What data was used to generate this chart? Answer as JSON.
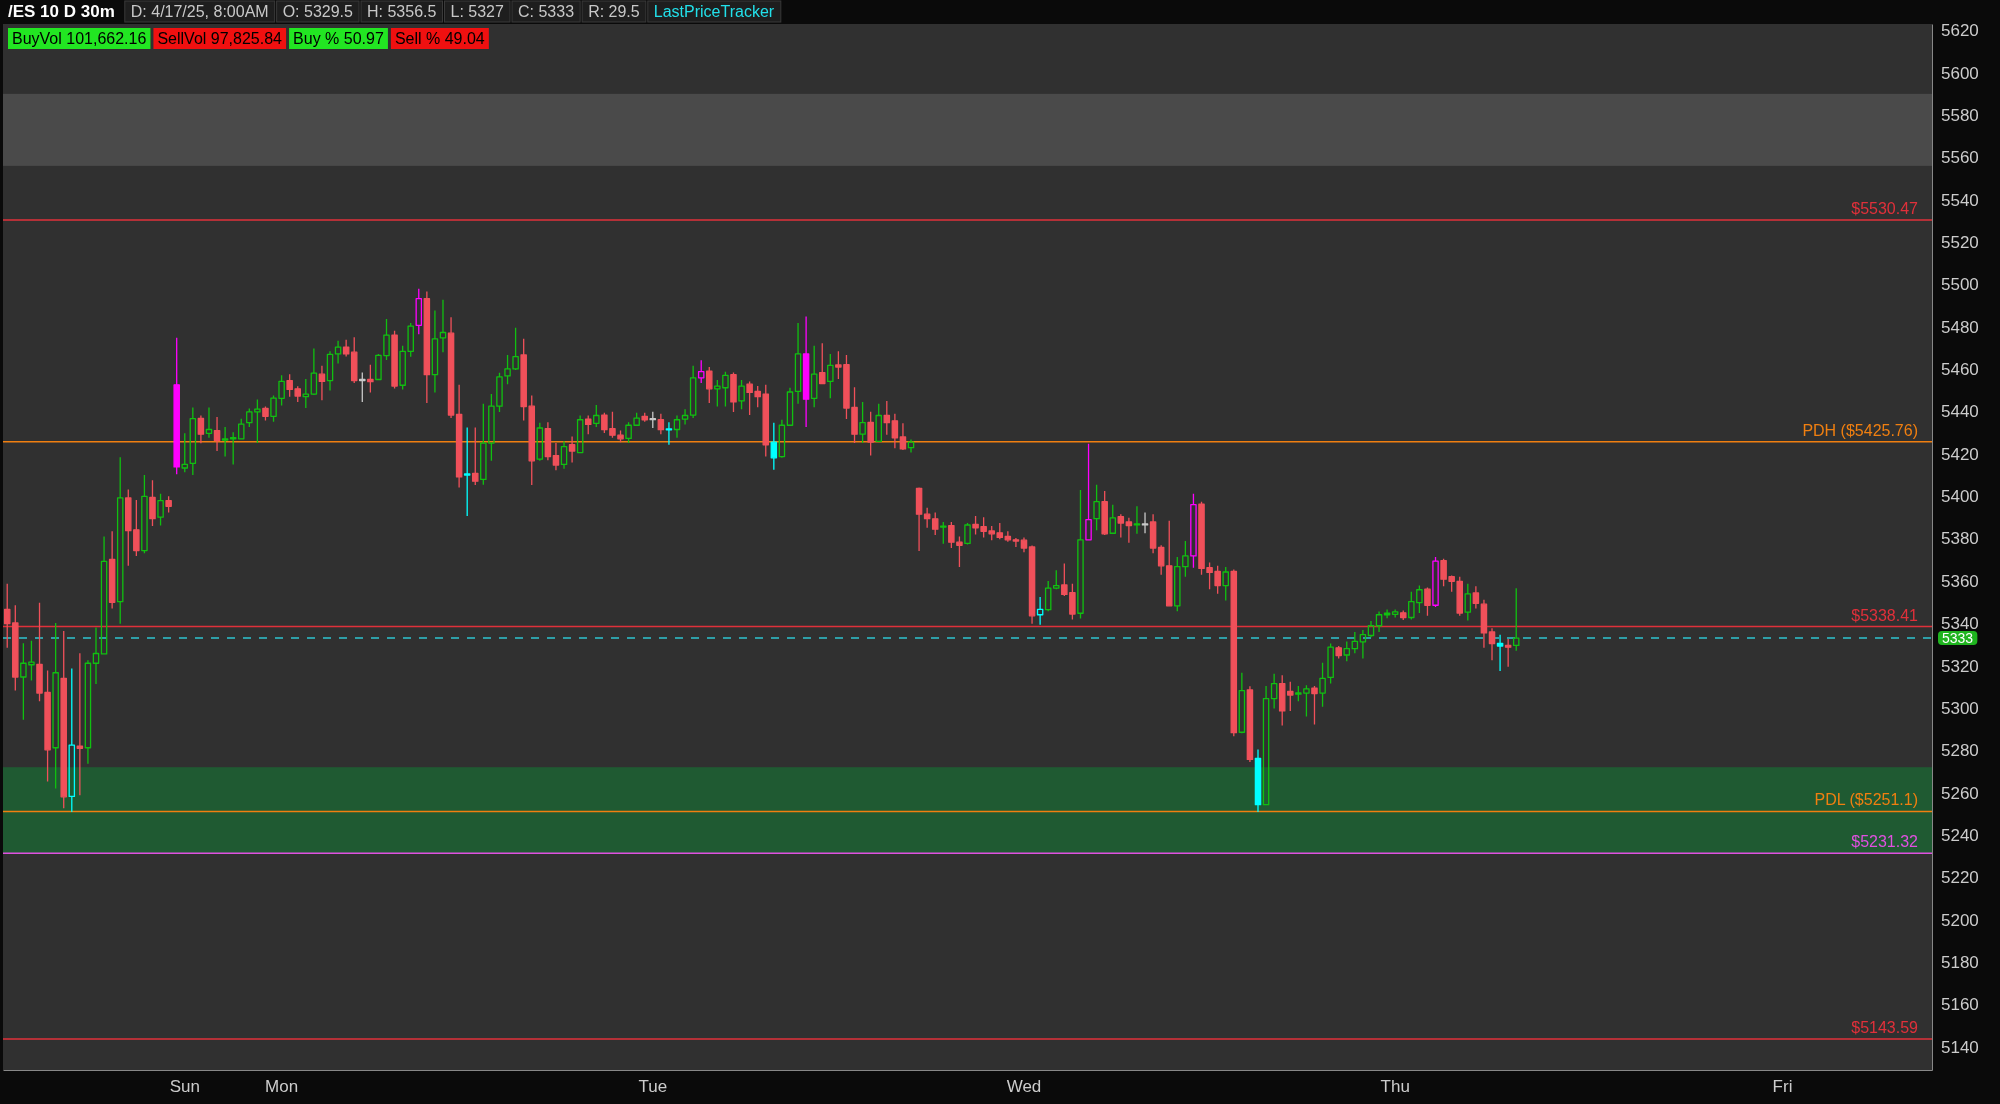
{
  "chart_data": {
    "type": "candlestick",
    "title": "/ES 10 D 30m",
    "annotations": [
      "D: 4/17/25, 8:00AM",
      "O: 5329.5",
      "H: 5356.5",
      "L: 5327",
      "C: 5333",
      "R: 29.5",
      "LastPriceTracker",
      "BuyVol 101,662.16",
      "SellVol 97,825.84",
      "Buy % 50.97",
      "Sell % 49.04"
    ],
    "categories": [
      null,
      null,
      null,
      null,
      null,
      null,
      null,
      null,
      null,
      null,
      null,
      null,
      null,
      null,
      null,
      null,
      null,
      null,
      null,
      null,
      null,
      null,
      "Sun",
      null,
      null,
      null,
      null,
      null,
      null,
      null,
      null,
      null,
      null,
      null,
      "Mon",
      null,
      null,
      null,
      null,
      null,
      null,
      null,
      null,
      null,
      null,
      null,
      null,
      null,
      null,
      null,
      null,
      null,
      null,
      null,
      null,
      null,
      null,
      null,
      null,
      null,
      null,
      null,
      null,
      null,
      null,
      null,
      null,
      null,
      null,
      null,
      null,
      null,
      null,
      null,
      null,
      null,
      null,
      null,
      null,
      null,
      "Tue",
      null,
      null,
      null,
      null,
      null,
      null,
      null,
      null,
      null,
      null,
      null,
      null,
      null,
      null,
      null,
      null,
      null,
      null,
      null,
      null,
      null,
      null,
      null,
      null,
      null,
      null,
      null,
      null,
      null,
      null,
      null,
      null,
      null,
      null,
      null,
      null,
      null,
      null,
      null,
      null,
      null,
      null,
      null,
      null,
      null,
      "Wed",
      null,
      null,
      null,
      null,
      null,
      null,
      null,
      null,
      null,
      null,
      null,
      null,
      null,
      null,
      null,
      null,
      null,
      null,
      null,
      null,
      null,
      null,
      null,
      null,
      null,
      null,
      null,
      null,
      null,
      null,
      null,
      null,
      null,
      null,
      null,
      null,
      null,
      null,
      null,
      null,
      null,
      null,
      null,
      null,
      null,
      "Thu",
      null,
      null,
      null,
      null,
      null,
      null,
      null,
      null,
      null,
      null,
      null,
      null,
      null,
      null,
      null,
      null,
      null,
      null,
      null,
      null,
      null,
      null,
      null,
      null,
      null,
      null,
      null,
      null,
      null,
      null,
      null,
      null,
      null,
      null,
      null,
      null,
      null,
      null,
      null,
      null,
      null,
      null,
      null,
      null,
      null,
      null,
      null,
      "Fri",
      null,
      null,
      null,
      null,
      null,
      null,
      null,
      null,
      null,
      null,
      null,
      null,
      null,
      null,
      null,
      null,
      null,
      null
    ],
    "ohlc": [
      [
        5346.5,
        5358.6,
        5328.4,
        5339.8
      ],
      [
        5340.1,
        5348.5,
        5308.2,
        5314.6
      ],
      [
        5314.6,
        5330.5,
        5294.4,
        5321.1
      ],
      [
        5320.4,
        5331.7,
        5312.9,
        5321.6
      ],
      [
        5320.6,
        5349.7,
        5303.1,
        5307.0
      ],
      [
        5307.3,
        5317.7,
        5265.2,
        5280.2
      ],
      [
        5281.2,
        5340.1,
        5261.9,
        5316.6
      ],
      [
        5314.0,
        5336.3,
        5252.6,
        5258.0
      ],
      [
        5258.2,
        5318.6,
        5250.9,
        5282.4
      ],
      [
        5281.9,
        5325.8,
        5258.8,
        5280.9
      ],
      [
        5281.2,
        5322.5,
        5273.6,
        5321.1
      ],
      [
        5321.1,
        5338.0,
        5311.3,
        5325.7
      ],
      [
        5325.5,
        5381.0,
        5325.5,
        5369.2
      ],
      [
        5370.1,
        5383.4,
        5346.9,
        5349.9
      ],
      [
        5350.2,
        5418.4,
        5339.8,
        5399.2
      ],
      [
        5399.2,
        5403.1,
        5367.1,
        5383.7
      ],
      [
        5384.1,
        5398.2,
        5371.8,
        5374.3
      ],
      [
        5374.3,
        5410.0,
        5373.0,
        5399.9
      ],
      [
        5399.4,
        5407.5,
        5385.9,
        5389.4
      ],
      [
        5390.1,
        5401.2,
        5386.2,
        5397.9
      ],
      [
        5397.9,
        5400.0,
        5392.3,
        5395.2
      ],
      [
        5452.6,
        5474.8,
        5410.3,
        5413.8
      ],
      [
        5413.3,
        5429.7,
        5411.3,
        5415.0
      ],
      [
        5415.5,
        5441.9,
        5410.0,
        5436.6
      ],
      [
        5436.7,
        5438.1,
        5425.0,
        5429.3
      ],
      [
        5429.7,
        5441.9,
        5427.6,
        5431.5
      ],
      [
        5431.0,
        5437.4,
        5421.3,
        5426.3
      ],
      [
        5426.6,
        5432.7,
        5418.7,
        5427.0
      ],
      [
        5427.3,
        5430.2,
        5415.0,
        5427.6
      ],
      [
        5427.1,
        5436.6,
        5427.1,
        5434.0
      ],
      [
        5434.7,
        5441.4,
        5432.7,
        5439.8
      ],
      [
        5439.8,
        5445.7,
        5425.1,
        5441.1
      ],
      [
        5441.4,
        5442.3,
        5435.7,
        5437.7
      ],
      [
        5437.7,
        5447.5,
        5435.2,
        5446.3
      ],
      [
        5446.2,
        5457.1,
        5442.8,
        5454.2
      ],
      [
        5454.6,
        5457.6,
        5447.0,
        5450.4
      ],
      [
        5450.7,
        5451.9,
        5444.5,
        5447.3
      ],
      [
        5447.0,
        5455.3,
        5441.6,
        5448.2
      ],
      [
        5448.2,
        5469.7,
        5447.8,
        5458.1
      ],
      [
        5457.6,
        5461.6,
        5445.3,
        5454.2
      ],
      [
        5454.6,
        5468.4,
        5449.9,
        5467.0
      ],
      [
        5467.2,
        5473.4,
        5462.7,
        5470.4
      ],
      [
        5470.4,
        5473.9,
        5466.0,
        5467.2
      ],
      [
        5468.0,
        5475.1,
        5453.4,
        5454.6
      ],
      [
        5455.1,
        5458.4,
        5444.5,
        5455.1
      ],
      [
        5455.2,
        5462.1,
        5449.0,
        5454.1
      ],
      [
        5455.1,
        5467.2,
        5454.9,
        5466.5
      ],
      [
        5466.4,
        5483.7,
        5464.3,
        5476.1
      ],
      [
        5476.1,
        5478.1,
        5450.9,
        5452.0
      ],
      [
        5452.4,
        5471.1,
        5450.4,
        5468.4
      ],
      [
        5468.4,
        5481.8,
        5465.9,
        5480.3
      ],
      [
        5480.7,
        5498.0,
        5476.5,
        5493.3
      ],
      [
        5493.3,
        5496.7,
        5444.0,
        5457.4
      ],
      [
        5457.4,
        5487.7,
        5449.0,
        5474.3
      ],
      [
        5474.8,
        5492.8,
        5468.0,
        5477.3
      ],
      [
        5477.0,
        5484.5,
        5436.9,
        5438.3
      ],
      [
        5438.6,
        5452.6,
        5404.1,
        5409.1
      ],
      [
        5410.0,
        5432.4,
        5390.6,
        5410.5
      ],
      [
        5410.8,
        5432.4,
        5405.3,
        5407.1
      ],
      [
        5407.9,
        5443.6,
        5405.4,
        5425.1
      ],
      [
        5425.1,
        5448.2,
        5416.7,
        5442.5
      ],
      [
        5442.5,
        5458.3,
        5439.8,
        5456.3
      ],
      [
        5456.8,
        5466.7,
        5452.9,
        5460.1
      ],
      [
        5460.1,
        5479.5,
        5459.6,
        5465.9
      ],
      [
        5466.7,
        5474.4,
        5435.7,
        5442.3
      ],
      [
        5442.5,
        5447.5,
        5405.3,
        5416.7
      ],
      [
        5417.5,
        5434.7,
        5416.7,
        5432.2
      ],
      [
        5431.9,
        5434.9,
        5417.0,
        5418.7
      ],
      [
        5419.2,
        5425.1,
        5412.2,
        5414.7
      ],
      [
        5415.0,
        5426.0,
        5413.0,
        5423.4
      ],
      [
        5424.3,
        5428.2,
        5415.9,
        5421.3
      ],
      [
        5420.6,
        5438.1,
        5420.4,
        5436.1
      ],
      [
        5436.4,
        5438.1,
        5429.3,
        5433.9
      ],
      [
        5434.4,
        5443.1,
        5432.7,
        5438.1
      ],
      [
        5438.3,
        5439.4,
        5429.8,
        5431.4
      ],
      [
        5431.9,
        5439.9,
        5427.6,
        5428.8
      ],
      [
        5428.8,
        5431.0,
        5425.5,
        5427.1
      ],
      [
        5427.3,
        5434.9,
        5425.1,
        5433.5
      ],
      [
        5433.5,
        5439.4,
        5433.2,
        5436.9
      ],
      [
        5437.7,
        5439.4,
        5435.2,
        5436.1
      ],
      [
        5436.6,
        5439.9,
        5432.2,
        5436.6
      ],
      [
        5436.1,
        5438.9,
        5429.3,
        5431.4
      ],
      [
        5431.4,
        5434.9,
        5424.3,
        5431.8
      ],
      [
        5431.5,
        5438.1,
        5427.6,
        5436.1
      ],
      [
        5436.4,
        5441.1,
        5433.9,
        5438.1
      ],
      [
        5438.3,
        5461.6,
        5436.9,
        5455.9
      ],
      [
        5455.9,
        5464.2,
        5453.4,
        5458.8
      ],
      [
        5459.1,
        5461.0,
        5444.0,
        5450.7
      ],
      [
        5450.7,
        5454.9,
        5442.3,
        5452.0
      ],
      [
        5451.2,
        5458.8,
        5442.3,
        5457.1
      ],
      [
        5457.4,
        5458.4,
        5439.8,
        5444.5
      ],
      [
        5445.0,
        5454.9,
        5441.1,
        5452.0
      ],
      [
        5452.9,
        5454.2,
        5438.3,
        5449.0
      ],
      [
        5449.5,
        5452.0,
        5442.0,
        5447.0
      ],
      [
        5448.2,
        5452.6,
        5418.7,
        5424.3
      ],
      [
        5425.5,
        5434.7,
        5412.5,
        5418.1
      ],
      [
        5418.7,
        5436.1,
        5418.1,
        5433.5
      ],
      [
        5433.5,
        5451.2,
        5433.2,
        5449.2
      ],
      [
        5449.5,
        5481.8,
        5443.6,
        5467.2
      ],
      [
        5467.2,
        5484.9,
        5432.7,
        5445.8
      ],
      [
        5446.2,
        5471.1,
        5442.0,
        5457.6
      ],
      [
        5458.3,
        5472.2,
        5452.9,
        5453.2
      ],
      [
        5454.2,
        5467.2,
        5446.2,
        5461.8
      ],
      [
        5462.0,
        5468.5,
        5455.4,
        5461.0
      ],
      [
        5462.1,
        5466.7,
        5436.4,
        5441.6
      ],
      [
        5441.9,
        5451.5,
        5425.1,
        5429.3
      ],
      [
        5429.3,
        5444.5,
        5425.1,
        5434.7
      ],
      [
        5434.9,
        5439.9,
        5419.2,
        5425.6
      ],
      [
        5425.9,
        5443.6,
        5425.6,
        5438.1
      ],
      [
        5438.1,
        5445.0,
        5429.0,
        5434.7
      ],
      [
        5435.6,
        5438.9,
        5422.6,
        5427.6
      ],
      [
        5428.0,
        5434.4,
        5421.8,
        5422.3
      ],
      [
        5422.9,
        5426.8,
        5420.6,
        5425.5
      ],
      [
        5403.7,
        5404.1,
        5374.1,
        5391.5
      ],
      [
        5391.5,
        5394.5,
        5385.1,
        5389.4
      ],
      [
        5389.3,
        5392.3,
        5381.7,
        5384.4
      ],
      [
        5385.6,
        5387.8,
        5377.5,
        5385.9
      ],
      [
        5386.1,
        5387.8,
        5375.5,
        5378.3
      ],
      [
        5378.3,
        5381.0,
        5366.6,
        5376.8
      ],
      [
        5377.7,
        5387.3,
        5377.2,
        5386.4
      ],
      [
        5386.7,
        5390.6,
        5381.9,
        5385.1
      ],
      [
        5385.6,
        5390.1,
        5380.5,
        5383.4
      ],
      [
        5383.6,
        5385.9,
        5379.2,
        5382.2
      ],
      [
        5382.7,
        5387.3,
        5379.7,
        5380.5
      ],
      [
        5381.0,
        5383.4,
        5378.5,
        5379.4
      ],
      [
        5379.4,
        5380.2,
        5376.0,
        5378.8
      ],
      [
        5379.2,
        5380.5,
        5373.5,
        5375.5
      ],
      [
        5376.0,
        5376.7,
        5339.8,
        5343.5
      ],
      [
        5344.0,
        5352.4,
        5339.3,
        5346.5
      ],
      [
        5346.4,
        5360.0,
        5345.7,
        5356.6
      ],
      [
        5356.6,
        5365.0,
        5356.1,
        5357.8
      ],
      [
        5358.1,
        5368.2,
        5352.8,
        5353.6
      ],
      [
        5354.4,
        5358.6,
        5341.8,
        5344.3
      ],
      [
        5344.7,
        5402.9,
        5342.2,
        5379.4
      ],
      [
        5379.4,
        5424.8,
        5379.4,
        5388.9
      ],
      [
        5389.4,
        5405.4,
        5383.9,
        5397.4
      ],
      [
        5397.4,
        5402.4,
        5381.7,
        5382.2
      ],
      [
        5382.5,
        5396.0,
        5382.2,
        5389.8
      ],
      [
        5390.3,
        5391.5,
        5380.5,
        5387.3
      ],
      [
        5387.8,
        5389.8,
        5378.0,
        5386.1
      ],
      [
        5386.6,
        5395.3,
        5382.2,
        5386.9
      ],
      [
        5386.9,
        5392.3,
        5382.5,
        5386.9
      ],
      [
        5387.8,
        5391.5,
        5373.0,
        5375.5
      ],
      [
        5375.8,
        5376.8,
        5362.9,
        5367.1
      ],
      [
        5367.1,
        5388.4,
        5348.2,
        5348.2
      ],
      [
        5348.2,
        5371.3,
        5345.7,
        5366.7
      ],
      [
        5366.7,
        5378.8,
        5362.0,
        5371.8
      ],
      [
        5371.8,
        5401.1,
        5366.2,
        5396.0
      ],
      [
        5396.2,
        5397.4,
        5362.9,
        5365.9
      ],
      [
        5366.2,
        5368.7,
        5356.1,
        5364.0
      ],
      [
        5364.5,
        5367.1,
        5353.9,
        5357.8
      ],
      [
        5357.8,
        5366.6,
        5350.7,
        5364.2
      ],
      [
        5364.5,
        5365.4,
        5286.6,
        5288.3
      ],
      [
        5288.5,
        5316.6,
        5288.0,
        5308.2
      ],
      [
        5308.5,
        5310.2,
        5274.5,
        5275.7
      ],
      [
        5276.2,
        5280.4,
        5250.9,
        5254.3
      ],
      [
        5254.3,
        5310.3,
        5254.3,
        5304.4
      ],
      [
        5304.4,
        5316.1,
        5299.7,
        5311.5
      ],
      [
        5311.5,
        5315.4,
        5291.7,
        5298.6
      ],
      [
        5307.8,
        5312.4,
        5298.6,
        5306.1
      ],
      [
        5306.5,
        5310.3,
        5303.1,
        5307.1
      ],
      [
        5307.0,
        5310.7,
        5296.0,
        5309.0
      ],
      [
        5309.3,
        5310.3,
        5292.2,
        5306.8
      ],
      [
        5307.0,
        5321.3,
        5300.6,
        5314.0
      ],
      [
        5314.4,
        5330.4,
        5311.5,
        5328.7
      ],
      [
        5328.4,
        5329.2,
        5323.3,
        5324.7
      ],
      [
        5325.0,
        5331.4,
        5322.1,
        5328.0
      ],
      [
        5328.0,
        5335.9,
        5325.8,
        5331.4
      ],
      [
        5331.2,
        5336.8,
        5323.3,
        5334.6
      ],
      [
        5334.2,
        5341.0,
        5333.4,
        5338.8
      ],
      [
        5338.8,
        5345.5,
        5335.9,
        5344.0
      ],
      [
        5344.0,
        5346.5,
        5342.3,
        5344.7
      ],
      [
        5344.2,
        5346.5,
        5342.7,
        5345.4
      ],
      [
        5344.9,
        5346.0,
        5341.5,
        5342.7
      ],
      [
        5342.7,
        5354.9,
        5341.8,
        5350.2
      ],
      [
        5349.7,
        5357.8,
        5344.8,
        5355.8
      ],
      [
        5356.1,
        5356.9,
        5343.5,
        5348.5
      ],
      [
        5348.5,
        5371.3,
        5347.7,
        5369.3
      ],
      [
        5369.6,
        5370.4,
        5357.5,
        5360.8
      ],
      [
        5362.0,
        5362.5,
        5354.9,
        5359.8
      ],
      [
        5359.8,
        5362.0,
        5343.5,
        5344.8
      ],
      [
        5345.2,
        5358.6,
        5341.3,
        5353.9
      ],
      [
        5354.3,
        5357.5,
        5346.9,
        5349.4
      ],
      [
        5349.0,
        5351.1,
        5328.4,
        5335.4
      ],
      [
        5335.9,
        5337.6,
        5322.5,
        5330.4
      ],
      [
        5330.5,
        5334.6,
        5317.4,
        5329.2
      ],
      [
        5329.5,
        5332.6,
        5319.4,
        5328.7
      ],
      [
        5329.5,
        5356.5,
        5327,
        5333
      ],
      null,
      null,
      null,
      null,
      null,
      null,
      null,
      null,
      null,
      null,
      null,
      null,
      null,
      null,
      null,
      null,
      null,
      null,
      null,
      null,
      null,
      null,
      null,
      null,
      null,
      null,
      null,
      null,
      null,
      null,
      null,
      null,
      null,
      null,
      null,
      null,
      null,
      null,
      null,
      null,
      null,
      null,
      null,
      null,
      null,
      null,
      null,
      null,
      null,
      null,
      null
    ],
    "colors": [
      "#f0505a",
      "#f0505a",
      "#10c010",
      "#10c010",
      "#f0505a",
      "#f0505a",
      "#10c010",
      "#f0505a",
      "#00ffff",
      "#f0505a",
      "#10c010",
      "#10c010",
      "#10c010",
      "#f0505a",
      "#10c010",
      "#f0505a",
      "#f0505a",
      "#10c010",
      "#f0505a",
      "#10c010",
      "#f0505a",
      "#ff00ff",
      "#10c010",
      "#10c010",
      "#f0505a",
      "#10c010",
      "#f0505a",
      "#10c010",
      "#10c010",
      "#10c010",
      "#10c010",
      "#10c010",
      "#f0505a",
      "#10c010",
      "#10c010",
      "#f0505a",
      "#f0505a",
      "#10c010",
      "#10c010",
      "#f0505a",
      "#10c010",
      "#10c010",
      "#f0505a",
      "#f0505a",
      "#c8c8c8",
      "#f0505a",
      "#10c010",
      "#10c010",
      "#f0505a",
      "#10c010",
      "#10c010",
      "#ff00ff",
      "#f0505a",
      "#10c010",
      "#10c010",
      "#f0505a",
      "#f0505a",
      "#00ffff",
      "#f0505a",
      "#10c010",
      "#10c010",
      "#10c010",
      "#10c010",
      "#10c010",
      "#f0505a",
      "#f0505a",
      "#10c010",
      "#f0505a",
      "#f0505a",
      "#10c010",
      "#f0505a",
      "#10c010",
      "#f0505a",
      "#10c010",
      "#f0505a",
      "#f0505a",
      "#f0505a",
      "#10c010",
      "#10c010",
      "#f0505a",
      "#c8c8c8",
      "#f0505a",
      "#00ffff",
      "#10c010",
      "#10c010",
      "#10c010",
      "#ff00ff",
      "#f0505a",
      "#10c010",
      "#10c010",
      "#f0505a",
      "#10c010",
      "#f0505a",
      "#f0505a",
      "#f0505a",
      "#00ffff",
      "#10c010",
      "#10c010",
      "#10c010",
      "#ff00ff",
      "#10c010",
      "#f0505a",
      "#10c010",
      "#f0505a",
      "#f0505a",
      "#f0505a",
      "#10c010",
      "#f0505a",
      "#10c010",
      "#f0505a",
      "#f0505a",
      "#f0505a",
      "#10c010",
      "#f0505a",
      "#f0505a",
      "#f0505a",
      "#10c010",
      "#f0505a",
      "#f0505a",
      "#10c010",
      "#f0505a",
      "#f0505a",
      "#f0505a",
      "#f0505a",
      "#f0505a",
      "#f0505a",
      "#f0505a",
      "#f0505a",
      "#00ffff",
      "#10c010",
      "#10c010",
      "#f0505a",
      "#f0505a",
      "#10c010",
      "#ff00ff",
      "#10c010",
      "#f0505a",
      "#10c010",
      "#f0505a",
      "#f0505a",
      "#10c010",
      "#c8c8c8",
      "#f0505a",
      "#f0505a",
      "#f0505a",
      "#10c010",
      "#10c010",
      "#ff00ff",
      "#f0505a",
      "#f0505a",
      "#f0505a",
      "#10c010",
      "#f0505a",
      "#10c010",
      "#f0505a",
      "#00ffff",
      "#10c010",
      "#10c010",
      "#f0505a",
      "#f0505a",
      "#10c010",
      "#10c010",
      "#f0505a",
      "#10c010",
      "#10c010",
      "#f0505a",
      "#10c010",
      "#10c010",
      "#10c010",
      "#10c010",
      "#10c010",
      "#10c010",
      "#10c010",
      "#f0505a",
      "#10c010",
      "#10c010",
      "#f0505a",
      "#ff00ff",
      "#f0505a",
      "#f0505a",
      "#f0505a",
      "#10c010",
      "#f0505a",
      "#f0505a",
      "#f0505a",
      "#00ffff",
      "#f0505a",
      "#10c010",
      null,
      null,
      null,
      null,
      null,
      null,
      null,
      null,
      null,
      null,
      null,
      null,
      null,
      null,
      null,
      null,
      null,
      null,
      null,
      null,
      null,
      null,
      null,
      null,
      null,
      null,
      null,
      null,
      null,
      null,
      null,
      null,
      null,
      null,
      null,
      null,
      null,
      null,
      null,
      null,
      null,
      null,
      null,
      null,
      null,
      null,
      null,
      null,
      null,
      null,
      null
    ],
    "ylim": [
      5129,
      5623
    ],
    "yticks": [
      5140,
      5160,
      5180,
      5200,
      5220,
      5240,
      5260,
      5280,
      5300,
      5320,
      5340,
      5360,
      5380,
      5400,
      5420,
      5440,
      5460,
      5480,
      5500,
      5520,
      5540,
      5560,
      5580,
      5600,
      5620
    ],
    "bands": [
      {
        "axis": "y",
        "from": 5231.32,
        "to": 5272,
        "color": "#1f5a32"
      },
      {
        "axis": "y",
        "from": 5556,
        "to": 5590,
        "color": "#4a4a4a"
      }
    ],
    "ref_lines": [
      {
        "axis": "y",
        "value": 5530.47,
        "label": "$5530.47",
        "color": "#e0303a"
      },
      {
        "axis": "y",
        "value": 5425.76,
        "label": "PDH ($5425.76)",
        "color": "#f07f10"
      },
      {
        "axis": "y",
        "value": 5338.41,
        "label": "$5338.41",
        "color": "#e0303a"
      },
      {
        "axis": "y",
        "value": 5333,
        "label": "5333",
        "color": "#2ec4d0",
        "line_style": "dashed"
      },
      {
        "axis": "y",
        "value": 5251.1,
        "label": "PDL ($5251.1)",
        "color": "#f07f10"
      },
      {
        "axis": "y",
        "value": 5231.32,
        "label": "$5231.32",
        "color": "#e050e0"
      },
      {
        "axis": "y",
        "value": 5143.59,
        "label": "$5143.59",
        "color": "#e0303a"
      }
    ]
  }
}
